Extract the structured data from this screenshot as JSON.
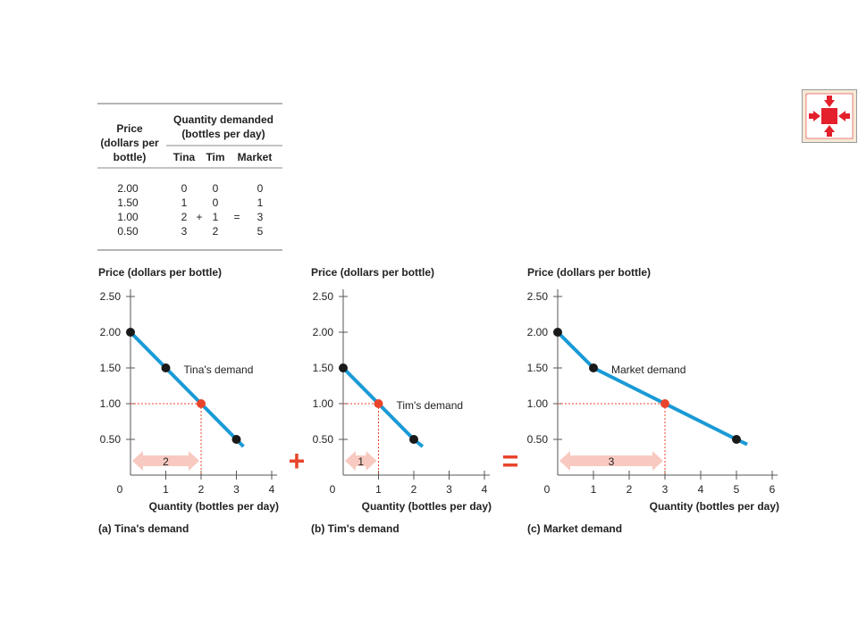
{
  "table": {
    "price_header": [
      "Price",
      "(dollars per",
      "bottle)"
    ],
    "qd_header": [
      "Quantity demanded",
      "(bottles per day)"
    ],
    "columns": [
      "Tina",
      "Tim",
      "Market"
    ],
    "rows": [
      {
        "price": "2.00",
        "tina": "0",
        "tim": "0",
        "market": "0",
        "highlight": false
      },
      {
        "price": "1.50",
        "tina": "1",
        "tim": "0",
        "market": "1",
        "highlight": false
      },
      {
        "price": "1.00",
        "tina": "2",
        "tim": "1",
        "market": "3",
        "highlight": true
      },
      {
        "price": "0.50",
        "tina": "3",
        "tim": "2",
        "market": "5",
        "highlight": false
      }
    ],
    "plus": "+",
    "equals": "="
  },
  "operators": {
    "plus": "+",
    "equals": "="
  },
  "colors": {
    "curve": "#1a9ad6",
    "highlight": "#e8452c",
    "arrow_fill": "#f8c9c0",
    "point": "#1a1a1a"
  },
  "icons": {
    "nav": "expand-arrows-icon"
  },
  "chart_data": [
    {
      "type": "line",
      "ylabel": "Price (dollars per bottle)",
      "xlabel": "Quantity (bottles per day)",
      "caption": "(a) Tina's demand",
      "curve_label": "Tina's demand",
      "x_ticks": [
        "1",
        "2",
        "3",
        "4"
      ],
      "y_ticks": [
        "2.50",
        "2.00",
        "1.50",
        "1.00",
        "0.50"
      ],
      "origin_label": "0",
      "xlim": [
        0,
        4
      ],
      "ylim": [
        0,
        2.5
      ],
      "points": [
        {
          "x": 0,
          "y": 2.0
        },
        {
          "x": 1,
          "y": 1.5
        },
        {
          "x": 2,
          "y": 1.0
        },
        {
          "x": 3,
          "y": 0.5
        }
      ],
      "line_end": {
        "x": 3.2,
        "y": 0.4
      },
      "highlight": {
        "x": 2,
        "y": 1.0,
        "x_label": "2",
        "y_label": "1.00"
      },
      "arrow_label": "2"
    },
    {
      "type": "line",
      "ylabel": "Price (dollars per bottle)",
      "xlabel": "Quantity (bottles per day)",
      "caption": "(b) Tim's demand",
      "curve_label": "Tim's demand",
      "x_ticks": [
        "1",
        "2",
        "3",
        "4"
      ],
      "y_ticks": [
        "2.50",
        "2.00",
        "1.50",
        "1.00",
        "0.50"
      ],
      "origin_label": "0",
      "xlim": [
        0,
        4
      ],
      "ylim": [
        0,
        2.5
      ],
      "points": [
        {
          "x": 0,
          "y": 1.5
        },
        {
          "x": 1,
          "y": 1.0
        },
        {
          "x": 2,
          "y": 0.5
        }
      ],
      "line_end": {
        "x": 2.25,
        "y": 0.4
      },
      "highlight": {
        "x": 1,
        "y": 1.0,
        "x_label": "1",
        "y_label": "1.00"
      },
      "arrow_label": "1"
    },
    {
      "type": "line",
      "ylabel": "Price (dollars per bottle)",
      "xlabel": "Quantity (bottles per day)",
      "caption": "(c) Market demand",
      "curve_label": "Market demand",
      "x_ticks": [
        "1",
        "2",
        "3",
        "4",
        "5",
        "6"
      ],
      "y_ticks": [
        "2.50",
        "2.00",
        "1.50",
        "1.00",
        "0.50"
      ],
      "origin_label": "0",
      "xlim": [
        0,
        6
      ],
      "ylim": [
        0,
        2.5
      ],
      "points": [
        {
          "x": 0,
          "y": 2.0
        },
        {
          "x": 1,
          "y": 1.5
        },
        {
          "x": 3,
          "y": 1.0
        },
        {
          "x": 5,
          "y": 0.5
        }
      ],
      "line_end": {
        "x": 5.3,
        "y": 0.43
      },
      "highlight": {
        "x": 3,
        "y": 1.0,
        "x_label": "3",
        "y_label": "1.00"
      },
      "arrow_label": "3"
    }
  ]
}
